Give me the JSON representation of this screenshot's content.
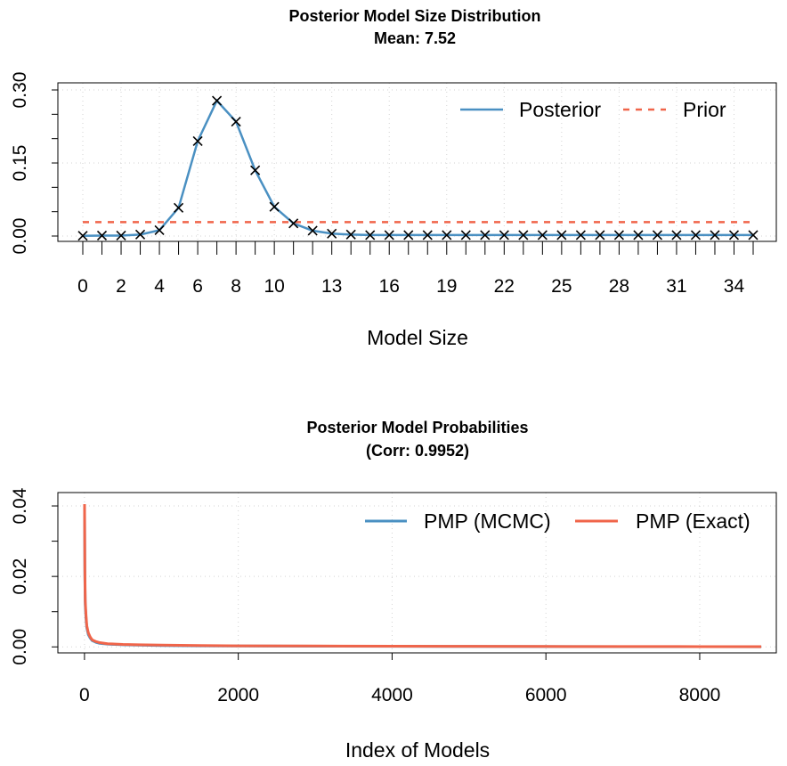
{
  "chart_data": [
    {
      "type": "line",
      "title": "Posterior Model Size Distribution",
      "subtitle": "Mean: 7.52",
      "xlabel": "Model Size",
      "ylabel": "",
      "x": [
        0,
        1,
        2,
        3,
        4,
        5,
        6,
        7,
        8,
        9,
        10,
        11,
        12,
        13,
        14,
        15,
        16,
        17,
        18,
        19,
        20,
        21,
        22,
        23,
        24,
        25,
        26,
        27,
        28,
        29,
        30,
        31,
        32,
        33,
        34,
        35
      ],
      "x_tick_labels": [
        "0",
        "2",
        "4",
        "6",
        "8",
        "10",
        "13",
        "16",
        "19",
        "22",
        "25",
        "28",
        "31",
        "34"
      ],
      "x_tick_label_positions": [
        0,
        2,
        4,
        6,
        8,
        10,
        13,
        16,
        19,
        22,
        25,
        28,
        31,
        34
      ],
      "y_tick_labels": [
        "0.00",
        "0.15",
        "0.30"
      ],
      "y_tick_positions": [
        0.0,
        0.15,
        0.3
      ],
      "ylim": [
        0,
        0.31
      ],
      "grid": true,
      "legend_position": "top-right",
      "series": [
        {
          "name": "Posterior",
          "color": "#4a90c2",
          "style": "solid",
          "markers": true,
          "values": [
            0.0005,
            0.001,
            0.001,
            0.003,
            0.012,
            0.058,
            0.195,
            0.278,
            0.235,
            0.135,
            0.06,
            0.026,
            0.011,
            0.005,
            0.003,
            0.002,
            0.002,
            0.002,
            0.002,
            0.002,
            0.002,
            0.002,
            0.002,
            0.002,
            0.002,
            0.002,
            0.002,
            0.002,
            0.002,
            0.002,
            0.002,
            0.002,
            0.002,
            0.002,
            0.002,
            0.002
          ]
        },
        {
          "name": "Prior",
          "color": "#f0654a",
          "style": "dashed",
          "markers": false,
          "values": [
            0.0286,
            0.0286,
            0.0286,
            0.0286,
            0.0286,
            0.0286,
            0.0286,
            0.0286,
            0.0286,
            0.0286,
            0.0286,
            0.0286,
            0.0286,
            0.0286,
            0.0286,
            0.0286,
            0.0286,
            0.0286,
            0.0286,
            0.0286,
            0.0286,
            0.0286,
            0.0286,
            0.0286,
            0.0286,
            0.0286,
            0.0286,
            0.0286,
            0.0286,
            0.0286,
            0.0286,
            0.0286,
            0.0286,
            0.0286,
            0.0286,
            0.0286
          ]
        }
      ]
    },
    {
      "type": "line",
      "title": "Posterior Model Probabilities",
      "subtitle": "(Corr: 0.9952)",
      "xlabel": "Index of Models",
      "ylabel": "",
      "x_tick_labels": [
        "0",
        "2000",
        "4000",
        "6000",
        "8000"
      ],
      "x_tick_positions": [
        0,
        2000,
        4000,
        6000,
        8000
      ],
      "y_tick_labels": [
        "0.00",
        "0.02",
        "0.04"
      ],
      "y_tick_positions": [
        0.0,
        0.02,
        0.04
      ],
      "xlim": [
        -346,
        8996
      ],
      "ylim": [
        -0.0017,
        0.0438
      ],
      "grid": true,
      "legend_position": "top-right",
      "series": [
        {
          "name": "PMP (MCMC)",
          "color": "#4a90c2",
          "x": [
            1,
            5,
            10,
            20,
            30,
            50,
            75,
            100,
            150,
            200,
            300,
            500,
            700,
            1000,
            1500,
            2000,
            3000,
            4000,
            5000,
            6000,
            7000,
            8000,
            8800
          ],
          "values": [
            0.0395,
            0.02,
            0.012,
            0.008,
            0.0055,
            0.0035,
            0.0025,
            0.0018,
            0.0013,
            0.001,
            0.0008,
            0.0006,
            0.0005,
            0.0004,
            0.0003,
            0.00025,
            0.0002,
            0.00015,
            0.00012,
            0.0001,
            8e-05,
            6e-05,
            5e-05
          ]
        },
        {
          "name": "PMP (Exact)",
          "color": "#f0654a",
          "x": [
            1,
            5,
            10,
            20,
            30,
            50,
            75,
            100,
            150,
            200,
            300,
            500,
            700,
            1000,
            1500,
            2000,
            3000,
            4000,
            5000,
            6000,
            7000,
            8000,
            8800
          ],
          "values": [
            0.0405,
            0.022,
            0.013,
            0.009,
            0.006,
            0.004,
            0.0028,
            0.002,
            0.0015,
            0.0012,
            0.0009,
            0.0007,
            0.0006,
            0.0005,
            0.0004,
            0.0003,
            0.00025,
            0.0002,
            0.00015,
            0.00012,
            0.0001,
            8e-05,
            6e-05
          ]
        }
      ]
    }
  ]
}
